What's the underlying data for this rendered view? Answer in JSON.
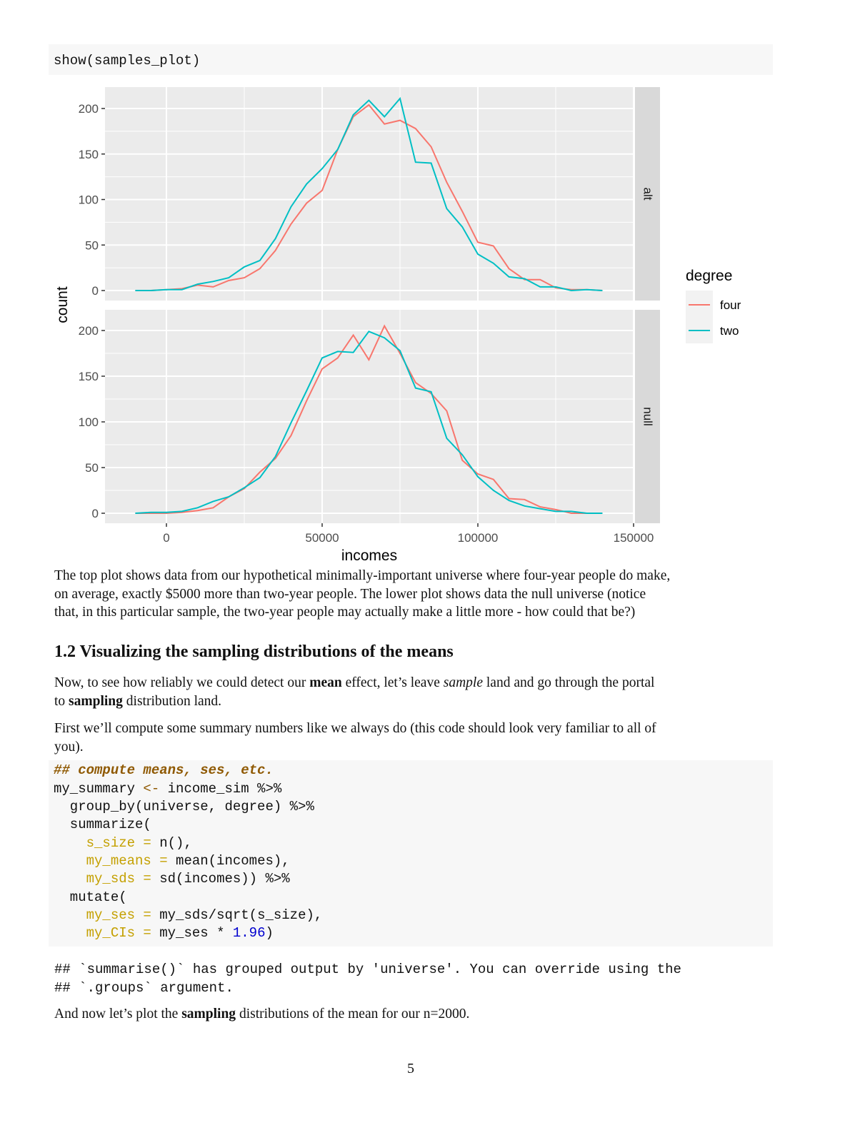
{
  "code_top": {
    "line": "show(samples_plot)"
  },
  "chart_data": {
    "type": "line",
    "title": "",
    "xlabel": "incomes",
    "ylabel": "count",
    "x_ticks": [
      0,
      50000,
      100000,
      150000
    ],
    "x_tick_labels": [
      "0",
      "50000",
      "100000",
      "150000"
    ],
    "xlim": [
      -20000,
      150000
    ],
    "y_ticks": [
      0,
      50,
      100,
      150,
      200
    ],
    "y_tick_labels": [
      "0",
      "50",
      "100",
      "150",
      "200"
    ],
    "ylim": [
      -10,
      220
    ],
    "grid": true,
    "legend": {
      "title": "degree",
      "position": "right",
      "entries": [
        "four",
        "two"
      ]
    },
    "colors": {
      "four": "#F8766D",
      "two": "#00BFC4",
      "panel_bg": "#EBEBEB",
      "strip_bg": "#D9D9D9"
    },
    "facets": [
      "alt",
      "null"
    ],
    "x": [
      -10000,
      -5000,
      0,
      5000,
      10000,
      15000,
      20000,
      25000,
      30000,
      35000,
      40000,
      45000,
      50000,
      55000,
      60000,
      65000,
      70000,
      75000,
      80000,
      85000,
      90000,
      95000,
      100000,
      105000,
      110000,
      115000,
      120000,
      125000,
      130000,
      135000,
      140000
    ],
    "panels": [
      {
        "facet": "alt",
        "series": [
          {
            "name": "four",
            "values": [
              0,
              0,
              1,
              2,
              6,
              4,
              11,
              14,
              24,
              44,
              73,
              96,
              110,
              155,
              191,
              204,
              183,
              187,
              178,
              158,
              119,
              87,
              53,
              49,
              24,
              12,
              12,
              3,
              1,
              1,
              0
            ]
          },
          {
            "name": "two",
            "values": [
              0,
              0,
              1,
              1,
              7,
              10,
              14,
              26,
              33,
              57,
              92,
              117,
              134,
              155,
              193,
              209,
              191,
              211,
              141,
              140,
              90,
              70,
              40,
              30,
              15,
              13,
              4,
              4,
              0,
              1,
              0
            ]
          }
        ]
      },
      {
        "facet": "null",
        "series": [
          {
            "name": "four",
            "values": [
              0,
              0,
              0,
              1,
              3,
              6,
              18,
              27,
              45,
              60,
              85,
              123,
              158,
              170,
              195,
              168,
              205,
              175,
              143,
              131,
              112,
              58,
              43,
              37,
              16,
              15,
              7,
              4,
              0,
              0,
              0
            ]
          },
          {
            "name": "two",
            "values": [
              0,
              1,
              1,
              2,
              6,
              13,
              18,
              28,
              39,
              62,
              99,
              134,
              170,
              177,
              176,
              199,
              192,
              178,
              137,
              133,
              82,
              64,
              40,
              25,
              14,
              8,
              5,
              2,
              2,
              0,
              0
            ]
          }
        ]
      }
    ]
  },
  "paragraph1": [
    "The top plot shows data from our hypothetical minimally-important universe where four-year people do make,",
    "on average, exactly $5000 more than two-year people. The lower plot shows data the null universe (notice",
    "that, in this particular sample, the two-year people may actually make a little more - how could that be?)"
  ],
  "section": {
    "number": "1.2",
    "title": "Visualizing the sampling distributions of the means"
  },
  "paragraph2": {
    "l1a": "Now, to see how reliably we could detect our ",
    "l1b": "mean",
    "l1c": " effect, let’s leave ",
    "l1d": "sample",
    "l1e": " land and go through the portal",
    "l2a": "to ",
    "l2b": "sampling",
    "l2c": " distribution land."
  },
  "paragraph3": [
    "First we’ll compute some summary numbers like we always do (this code should look very familiar to all of",
    "you)."
  ],
  "code_summary": {
    "comment": "## compute means, ses, etc.",
    "l2a": "my_summary ",
    "l2op": "<-",
    "l2b": " income_sim %>%",
    "l3": "  group_by(universe, degree) %>%",
    "l4": "  summarize(",
    "l5a": "    s_size",
    "l5b": " = ",
    "l5c": "n(),",
    "l6a": "    my_means",
    "l6b": " = ",
    "l6c": "mean(incomes),",
    "l7a": "    my_sds",
    "l7b": " = ",
    "l7c": "sd(incomes)) %>%",
    "l8": "  mutate(",
    "l9a": "    my_ses",
    "l9b": " = ",
    "l9c": "my_sds/sqrt(s_size),",
    "l10a": "    my_CIs",
    "l10b": " = ",
    "l10c": "my_ses * ",
    "l10num": "1.96",
    "l10d": ")"
  },
  "output": [
    "## `summarise()` has grouped output by 'universe'. You can override using the",
    "## `.groups` argument."
  ],
  "paragraph4": {
    "a": "And now let’s plot the ",
    "b": "sampling",
    "c": " distributions of the mean for our n=2000."
  },
  "page_number": "5"
}
